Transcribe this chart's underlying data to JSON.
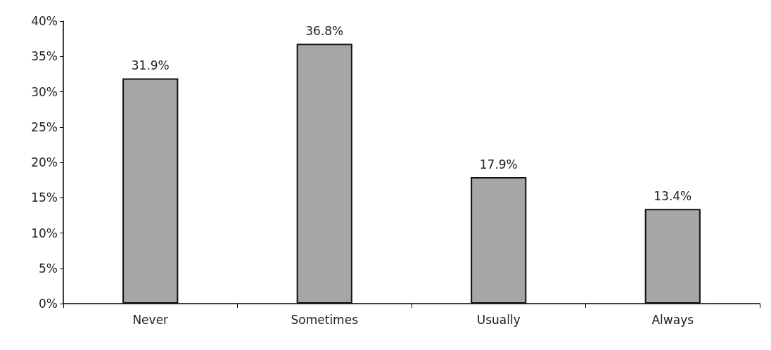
{
  "chart_data": {
    "type": "bar",
    "categories": [
      "Never",
      "Sometimes",
      "Usually",
      "Always"
    ],
    "values": [
      31.9,
      36.8,
      17.9,
      13.4
    ],
    "value_labels": [
      "31.9%",
      "36.8%",
      "17.9%",
      "13.4%"
    ],
    "color": "#a6a6a6",
    "ylim": [
      0,
      40
    ],
    "yticks": [
      {
        "value": 0,
        "label": "0%"
      },
      {
        "value": 5,
        "label": "5%"
      },
      {
        "value": 10,
        "label": "10%"
      },
      {
        "value": 15,
        "label": "15%"
      },
      {
        "value": 20,
        "label": "20%"
      },
      {
        "value": 25,
        "label": "25%"
      },
      {
        "value": 30,
        "label": "30%"
      },
      {
        "value": 35,
        "label": "35%"
      },
      {
        "value": 40,
        "label": "40%"
      }
    ],
    "grid": false
  }
}
